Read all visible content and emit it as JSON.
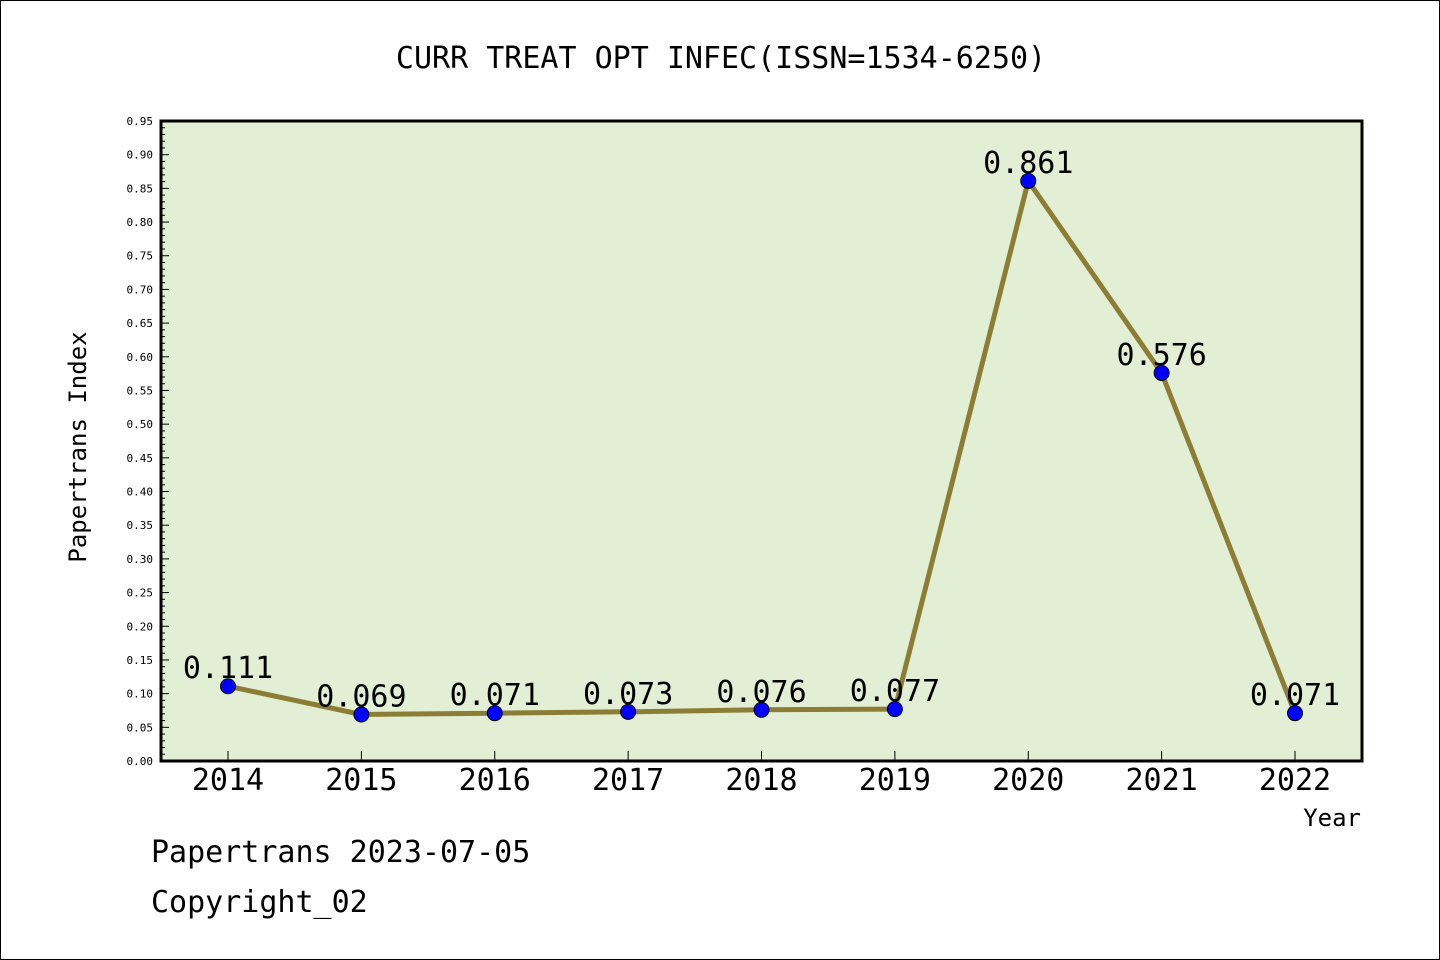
{
  "chart_data": {
    "type": "line",
    "title": "CURR TREAT OPT INFEC(ISSN=1534-6250)",
    "xlabel": "Year",
    "ylabel": "Papertrans Index",
    "categories": [
      "2014",
      "2015",
      "2016",
      "2017",
      "2018",
      "2019",
      "2020",
      "2021",
      "2022"
    ],
    "series": [
      {
        "values": [
          0.111,
          0.069,
          0.071,
          0.073,
          0.076,
          0.077,
          0.861,
          0.576,
          0.071
        ],
        "labels": [
          "0.111",
          "0.069",
          "0.071",
          "0.073",
          "0.076",
          "0.077",
          "0.861",
          "0.576",
          "0.071"
        ]
      }
    ],
    "ylim": [
      0,
      0.95
    ],
    "ytick_step": 0.05,
    "ytick_labels": [
      "0.00",
      "0.05",
      "0.10",
      "0.15",
      "0.20",
      "0.25",
      "0.30",
      "0.35",
      "0.40",
      "0.45",
      "0.50",
      "0.55",
      "0.60",
      "0.65",
      "0.70",
      "0.75",
      "0.80",
      "0.85",
      "0.90",
      "0.95"
    ],
    "grid": false,
    "legend": "none",
    "colors": {
      "plot_background": "#e2efd5",
      "line": "#8b7d35",
      "marker": "#0000ff"
    }
  },
  "footer": {
    "line1": "Papertrans 2023-07-05",
    "line2": "Copyright_02"
  }
}
